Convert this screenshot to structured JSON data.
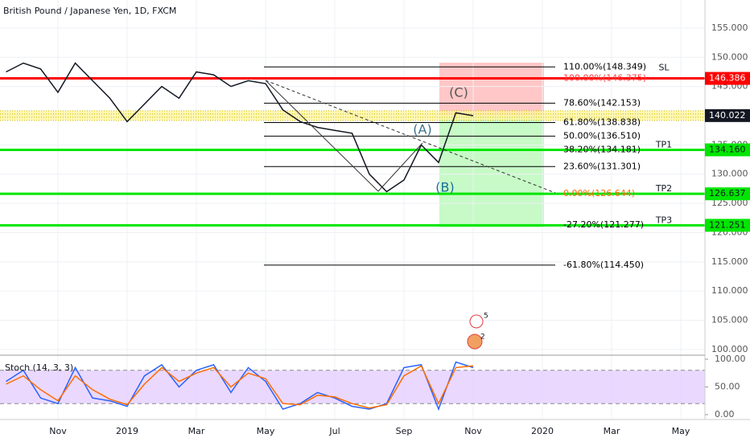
{
  "header": {
    "title": "British Pound / Japanese Yen, 1D, FXCM"
  },
  "events": [
    "5",
    "2"
  ],
  "chart_data": [
    {
      "type": "line",
      "categories": [
        null,
        null,
        null,
        "Nov",
        null,
        null,
        null,
        "2019",
        null,
        null,
        null,
        "Mar",
        null,
        null,
        null,
        "May",
        null,
        null,
        null,
        "Jul",
        null,
        null,
        null,
        "Sep",
        null,
        null,
        null,
        "Nov",
        null,
        null,
        null,
        "2020",
        null,
        null,
        null,
        "Mar",
        null,
        null,
        null,
        "May"
      ],
      "values": [
        147.5,
        149,
        148,
        144,
        149,
        146,
        143,
        139,
        142,
        145,
        143,
        147.5,
        147,
        145,
        146,
        145.5,
        141,
        139,
        138,
        137.5,
        137,
        130,
        127,
        129,
        135,
        132,
        140.5,
        140.0,
        null,
        null,
        null,
        null,
        null,
        null,
        null,
        null,
        null,
        null,
        null,
        null
      ],
      "color": "#131722",
      "ylim": [
        99.3,
        159.8
      ],
      "yticks": [
        {
          "value": 100,
          "label": "100.000"
        },
        {
          "value": 105,
          "label": "105.000"
        },
        {
          "value": 110,
          "label": "110.000"
        },
        {
          "value": 115,
          "label": "115.000"
        },
        {
          "value": 120,
          "label": "120.000"
        },
        {
          "value": 125,
          "label": "125.000"
        },
        {
          "value": 130,
          "label": "130.000"
        },
        {
          "value": 135,
          "label": "135.000"
        },
        {
          "value": 140,
          "label": "140.000"
        },
        {
          "value": 145,
          "label": "145.000"
        },
        {
          "value": 150,
          "label": "150.000"
        },
        {
          "value": 155,
          "label": "155.000"
        }
      ],
      "grid": true,
      "levels": [
        {
          "value": 146.386,
          "label": "146.386",
          "color": "#ff0000",
          "tag": "SL"
        },
        {
          "value": 134.16,
          "label": "134.160",
          "color": "#00e600",
          "tag": "TP1"
        },
        {
          "value": 126.637,
          "label": "126.637",
          "color": "#00e600",
          "tag": "TP2"
        },
        {
          "value": 121.251,
          "label": "121.251",
          "color": "#00e600",
          "tag": "TP3"
        }
      ],
      "last_price": {
        "value": 140.022,
        "label": "140.022",
        "color": "#131722"
      },
      "fib": [
        {
          "value": 148.349,
          "label": "110.00%(148.349)",
          "color": "#000000"
        },
        {
          "value": 146.375,
          "label": "100.00%(146.375)",
          "color": "#ff4040"
        },
        {
          "value": 142.153,
          "label": "78.60%(142.153)",
          "color": "#000000"
        },
        {
          "value": 138.838,
          "label": "61.80%(138.838)",
          "color": "#000000"
        },
        {
          "value": 136.51,
          "label": "50.00%(136.510)",
          "color": "#000000"
        },
        {
          "value": 134.181,
          "label": "38.20%(134.181)",
          "color": "#000000"
        },
        {
          "value": 131.301,
          "label": "23.60%(131.301)",
          "color": "#000000"
        },
        {
          "value": 126.644,
          "label": "0.00%(126.644)",
          "color": "#ff6a00"
        },
        {
          "value": 121.277,
          "label": "-27.20%(121.277)",
          "color": "#000000"
        },
        {
          "value": 114.45,
          "label": "-61.80%(114.450)",
          "color": "#000000"
        }
      ],
      "waves": [
        "(A)",
        "(B)",
        "(C)"
      ]
    },
    {
      "type": "line",
      "title": "Stoch (14, 3, 3)",
      "series": [
        {
          "color": "#2962ff",
          "values": [
            60,
            80,
            30,
            20,
            85,
            30,
            25,
            15,
            70,
            90,
            50,
            80,
            90,
            40,
            85,
            60,
            10,
            20,
            40,
            30,
            15,
            10,
            20,
            85,
            90,
            10,
            95,
            85
          ]
        },
        {
          "color": "#ff6d00",
          "values": [
            55,
            70,
            45,
            25,
            70,
            45,
            28,
            18,
            55,
            85,
            60,
            75,
            85,
            50,
            75,
            65,
            20,
            18,
            35,
            32,
            20,
            12,
            18,
            70,
            88,
            20,
            85,
            88
          ]
        }
      ],
      "ylim": [
        -8.7,
        105.8
      ],
      "yticks": [
        {
          "value": 0,
          "label": "0.00"
        },
        {
          "value": 50,
          "label": "50.00"
        },
        {
          "value": 100,
          "label": "100.00"
        }
      ],
      "bands": [
        20,
        80
      ],
      "band_color": "#e1c8ff"
    }
  ]
}
